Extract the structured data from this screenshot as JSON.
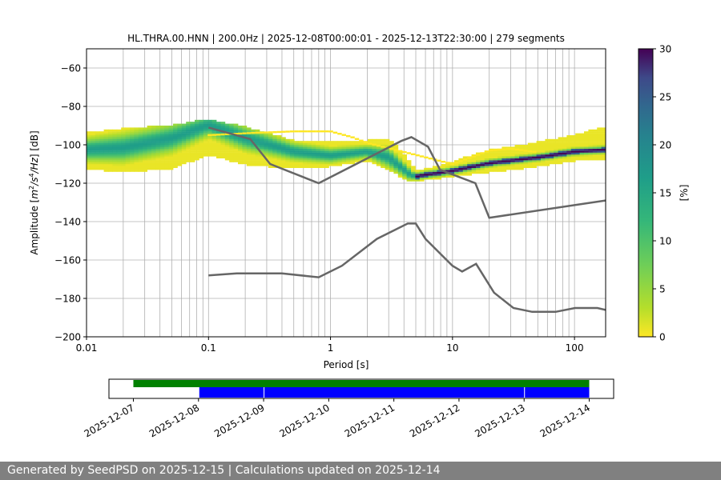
{
  "chart_data": [
    {
      "type": "heatmap",
      "title": "HL.THRA.00.HNN | 200.0Hz | 2025-12-08T00:00:01 - 2025-12-13T22:30:00 | 279 segments",
      "xlabel": "Period [s]",
      "ylabel_parts": [
        "Amplitude [",
        "m",
        "2",
        "/s",
        "4",
        "/Hz",
        "] [dB]"
      ],
      "x_scale": "log",
      "xlim": [
        0.01,
        180
      ],
      "ylim": [
        -200,
        -50
      ],
      "x_ticks": [
        0.01,
        0.1,
        1,
        10,
        100
      ],
      "x_tick_labels": [
        "0.01",
        "0.1",
        "1",
        "10",
        "100"
      ],
      "y_ticks": [
        -200,
        -180,
        -160,
        -140,
        -120,
        -100,
        -80,
        -60
      ],
      "y_tick_labels": [
        "−200",
        "−180",
        "−160",
        "−140",
        "−120",
        "−100",
        "−80",
        "−60"
      ],
      "grid": true,
      "colorbar": {
        "label": "[%]",
        "colormap": "viridis_r",
        "range": [
          0,
          30
        ],
        "ticks": [
          0,
          5,
          10,
          15,
          20,
          25,
          30
        ],
        "tick_labels": [
          "0",
          "5",
          "10",
          "15",
          "20",
          "25",
          "30"
        ]
      },
      "ppsd_mode": {
        "period": [
          0.01,
          0.02,
          0.05,
          0.1,
          0.2,
          0.5,
          1,
          2,
          3,
          4.5,
          5,
          6,
          8,
          10,
          20,
          50,
          100,
          180
        ],
        "db": [
          -103,
          -102,
          -97,
          -90,
          -97,
          -104,
          -106,
          -104,
          -107,
          -116,
          -117,
          -116,
          -115,
          -114,
          -110,
          -107,
          -104,
          -103
        ]
      },
      "ppsd_band": {
        "period": [
          0.01,
          0.02,
          0.05,
          0.1,
          0.2,
          0.5,
          1,
          2,
          3,
          4.5,
          5,
          6,
          8,
          10,
          20,
          50,
          100,
          180
        ],
        "db_upper": [
          -95,
          -93,
          -91,
          -88,
          -92,
          -99,
          -100,
          -99,
          -98,
          -110,
          -115,
          -114,
          -112,
          -110,
          -104,
          -100,
          -96,
          -92
        ],
        "db_lower": [
          -112,
          -114,
          -112,
          -105,
          -110,
          -112,
          -111,
          -108,
          -113,
          -119,
          -119,
          -118,
          -117,
          -116,
          -114,
          -111,
          -108,
          -107
        ]
      },
      "ppsd_sparse": {
        "period": [
          0.1,
          0.2,
          0.5,
          1,
          1.5,
          2,
          10,
          15,
          20,
          30,
          50
        ],
        "db": [
          -95,
          -94,
          -93,
          -93,
          -96,
          -99,
          -110,
          -106,
          -103,
          -102,
          -104
        ]
      },
      "nhnm": {
        "period": [
          0.1,
          0.22,
          0.32,
          0.8,
          3.8,
          4.6,
          6.3,
          7.9,
          15.4,
          20,
          180
        ],
        "db": [
          -91,
          -97,
          -110,
          -120,
          -98,
          -96,
          -101,
          -113,
          -120,
          -138,
          -129
        ]
      },
      "nlnm": {
        "period": [
          0.1,
          0.17,
          0.4,
          0.8,
          1.24,
          2.4,
          4.3,
          5,
          6,
          10,
          12,
          15.6,
          21.9,
          31.6,
          45,
          70,
          101,
          154,
          180
        ],
        "db": [
          -168,
          -167,
          -167,
          -169,
          -163,
          -149,
          -141,
          -141,
          -149,
          -163,
          -166,
          -162,
          -177,
          -185,
          -187,
          -187,
          -185,
          -185,
          -186
        ]
      }
    },
    {
      "type": "timeline",
      "x_tick_labels": [
        "2025-12-07",
        "2025-12-08",
        "2025-12-09",
        "2025-12-10",
        "2025-12-11",
        "2025-12-12",
        "2025-12-13",
        "2025-12-14"
      ],
      "xlim": [
        "2025-12-06T15:00",
        "2025-12-14T09:00"
      ],
      "available_data": {
        "color": "#008000",
        "intervals": [
          [
            "2025-12-07T00:00",
            "2025-12-14T00:00"
          ]
        ]
      },
      "used_psd_segments": {
        "color": "#0000ff",
        "intervals": [
          [
            "2025-12-08T00:00",
            "2025-12-09T00:00"
          ],
          [
            "2025-12-09T00:00",
            "2025-12-13T00:00"
          ],
          [
            "2025-12-13T00:00",
            "2025-12-14T00:00"
          ]
        ]
      }
    }
  ],
  "footer": {
    "text": "Generated by SeedPSD on 2025-12-15 | Calculations updated on 2025-12-14"
  },
  "colors": {
    "model_line": "#666666",
    "grid": "#b0b0b0",
    "footer_bg": "#808080"
  }
}
